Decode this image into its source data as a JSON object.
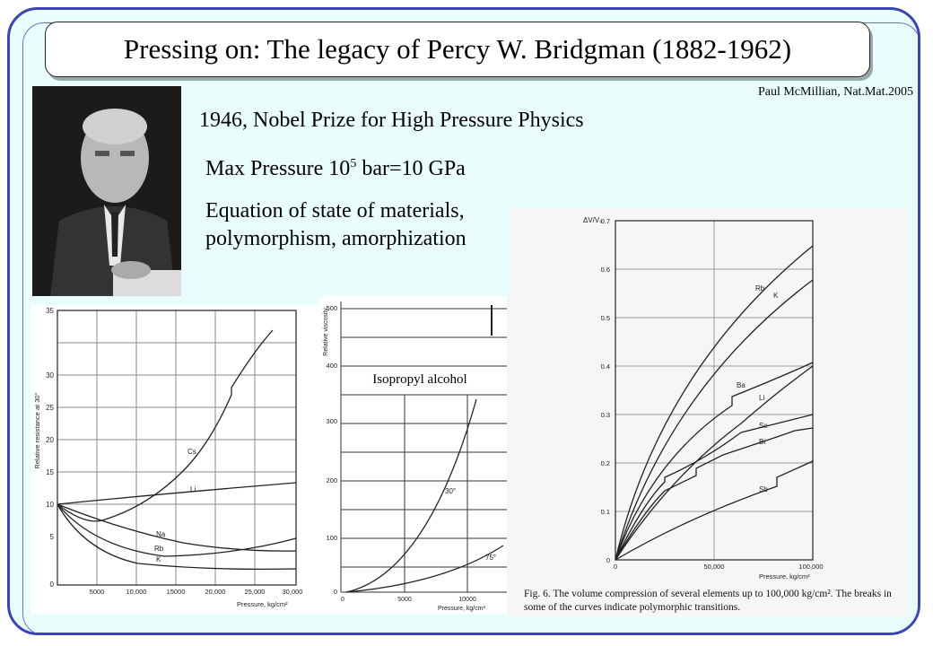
{
  "title": "Pressing on: The legacy of Percy W. Bridgman (1882-1962)",
  "citation": "Paul McMillian, Nat.Mat.2005",
  "nobel_line": "1946, Nobel Prize for High Pressure Physics",
  "pressure_line": {
    "prefix": "Max Pressure 10",
    "sup": "5",
    "suffix": " bar=10 GPa"
  },
  "topics_line": "Equation of state of materials, polymorphism, amorphization",
  "colors": {
    "frame": "#3b45b0",
    "background": "#eafdfd"
  },
  "left_plot": {
    "ylabel": "Relative resistance at 30°",
    "xlabel": "Pressure, kg/cm²",
    "yticks": [
      "0",
      "5",
      "10",
      "15",
      "20",
      "25",
      "30",
      "35"
    ],
    "xticks": [
      "5000",
      "10,000",
      "15000",
      "20,000",
      "25,000",
      "30,000"
    ],
    "series_labels": [
      "Cs",
      "Li",
      "Na",
      "Rb",
      "K"
    ]
  },
  "mid_plot": {
    "ylabel": "Relative viscosity",
    "xlabel": "Pressure, kg/cm²",
    "yticks_upper": [
      "400",
      "500"
    ],
    "yticks_lower": [
      "0",
      "100",
      "200",
      "300"
    ],
    "xticks": [
      "0",
      "5000",
      "10000"
    ],
    "curve_labels": [
      "30°",
      "75°"
    ],
    "inset_label": "Isopropyl alcohol"
  },
  "right_plot": {
    "ylabel": "ΔV/V₀",
    "xlabel": "Pressure, kg/cm²",
    "yticks": [
      "0",
      "0.1",
      "0.2",
      "0.3",
      "0.4",
      "0.5",
      "0.6",
      "0.7"
    ],
    "xticks": [
      "0",
      "50,000",
      "100,000"
    ],
    "series_labels": [
      "Rb",
      "K",
      "Ba",
      "Li",
      "Se",
      "Bi",
      "Sb"
    ],
    "caption": "Fig. 6. The volume compression of several elements up to 100,000 kg/cm². The breaks in some of the curves indicate polymorphic transitions."
  }
}
